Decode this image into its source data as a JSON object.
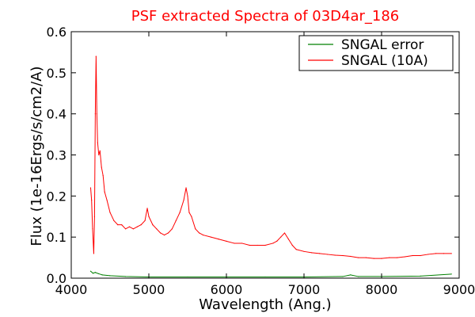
{
  "chart_data": {
    "type": "line",
    "title": "PSF extracted Spectra of 03D4ar_186",
    "xlabel": "Wavelength (Ang.)",
    "ylabel": "Flux (1e-16Ergs/s/cm2/A)",
    "xlim": [
      4000,
      9000
    ],
    "ylim": [
      0.0,
      0.6
    ],
    "xticks": [
      4000,
      5000,
      6000,
      7000,
      8000,
      9000
    ],
    "yticks": [
      0.0,
      0.1,
      0.2,
      0.3,
      0.4,
      0.5,
      0.6
    ],
    "xtick_labels": [
      "4000",
      "5000",
      "6000",
      "7000",
      "8000",
      "9000"
    ],
    "ytick_labels": [
      "0.0",
      "0.1",
      "0.2",
      "0.3",
      "0.4",
      "0.5",
      "0.6"
    ],
    "grid": false,
    "legend_position": "upper-right",
    "series": [
      {
        "name": "SNGAL error",
        "color": "#008000",
        "x": [
          4250,
          4280,
          4310,
          4350,
          4400,
          4500,
          4700,
          5000,
          5500,
          6000,
          6500,
          7000,
          7500,
          7600,
          7700,
          8000,
          8500,
          8900
        ],
        "y": [
          0.017,
          0.012,
          0.014,
          0.011,
          0.008,
          0.006,
          0.004,
          0.003,
          0.003,
          0.003,
          0.003,
          0.003,
          0.004,
          0.008,
          0.004,
          0.004,
          0.005,
          0.01
        ]
      },
      {
        "name": "SNGAL (10A)",
        "color": "#ff0000",
        "x": [
          4250,
          4262,
          4275,
          4290,
          4300,
          4310,
          4320,
          4330,
          4340,
          4355,
          4370,
          4390,
          4410,
          4430,
          4460,
          4500,
          4550,
          4600,
          4650,
          4700,
          4750,
          4800,
          4850,
          4900,
          4950,
          4980,
          5000,
          5050,
          5100,
          5150,
          5200,
          5250,
          5300,
          5350,
          5400,
          5450,
          5480,
          5500,
          5520,
          5550,
          5600,
          5650,
          5700,
          5800,
          5900,
          6000,
          6100,
          6200,
          6300,
          6400,
          6500,
          6600,
          6650,
          6700,
          6750,
          6800,
          6850,
          6900,
          7000,
          7100,
          7200,
          7300,
          7400,
          7500,
          7600,
          7700,
          7800,
          7900,
          8000,
          8100,
          8200,
          8300,
          8400,
          8500,
          8600,
          8700,
          8800,
          8900
        ],
        "y": [
          0.22,
          0.19,
          0.12,
          0.06,
          0.15,
          0.4,
          0.54,
          0.4,
          0.33,
          0.3,
          0.31,
          0.27,
          0.25,
          0.21,
          0.19,
          0.16,
          0.14,
          0.13,
          0.13,
          0.12,
          0.125,
          0.12,
          0.125,
          0.13,
          0.14,
          0.17,
          0.15,
          0.13,
          0.12,
          0.11,
          0.105,
          0.11,
          0.12,
          0.14,
          0.16,
          0.19,
          0.22,
          0.2,
          0.16,
          0.15,
          0.12,
          0.11,
          0.105,
          0.1,
          0.095,
          0.09,
          0.085,
          0.085,
          0.08,
          0.08,
          0.08,
          0.085,
          0.09,
          0.1,
          0.11,
          0.095,
          0.08,
          0.07,
          0.065,
          0.062,
          0.06,
          0.058,
          0.056,
          0.055,
          0.053,
          0.05,
          0.05,
          0.048,
          0.048,
          0.05,
          0.05,
          0.052,
          0.055,
          0.055,
          0.058,
          0.06,
          0.06,
          0.06
        ]
      }
    ]
  }
}
